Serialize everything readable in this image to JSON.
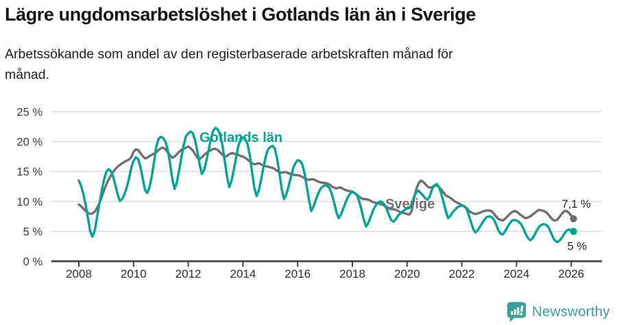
{
  "header": {
    "title": "Lägre ungdomsarbetslöshet i Gotlands län än i Sverige",
    "subtitle": "Arbetssökande som andel av den registerbaserade arbetskraften månad för\nmånad."
  },
  "chart_data": {
    "type": "line",
    "title": "Lägre ungdomsarbetslöshet i Gotlands län än i Sverige",
    "xlabel": "",
    "ylabel": "",
    "unit": "%",
    "ylim": [
      0,
      25
    ],
    "grid": true,
    "y_ticks": [
      0,
      5,
      10,
      15,
      20,
      25
    ],
    "y_tick_labels": [
      "0 %",
      "5 %",
      "10 %",
      "15 %",
      "20 %",
      "25 %"
    ],
    "x_tick_years": [
      2008,
      2010,
      2012,
      2014,
      2016,
      2018,
      2020,
      2022,
      2024,
      2026
    ],
    "x_tick_labels": [
      "2008",
      "2010",
      "2012",
      "2014",
      "2016",
      "2018",
      "2020",
      "2022",
      "2024",
      "2026"
    ],
    "x_monthly_range": "2008-01 to 2026-02",
    "axis_color": "#3f3f3f",
    "grid_color": "#d9d9d9",
    "series": [
      {
        "name": "Sverige",
        "color": "#6f6f6f",
        "end_label": "7,1 %",
        "end_value": 7.1,
        "values": [
          9.5,
          9.2,
          8.8,
          8.4,
          8.1,
          7.9,
          8.0,
          8.3,
          8.9,
          9.7,
          10.7,
          11.8,
          12.8,
          13.6,
          14.3,
          14.9,
          15.4,
          15.8,
          16.1,
          16.4,
          16.6,
          16.8,
          17.0,
          17.4,
          18.3,
          18.7,
          18.6,
          18.1,
          17.6,
          17.2,
          17.3,
          17.6,
          17.8,
          18.0,
          18.2,
          18.6,
          18.9,
          19.0,
          18.7,
          18.2,
          17.7,
          17.3,
          17.5,
          17.9,
          18.3,
          18.6,
          18.8,
          19.0,
          19.2,
          18.9,
          18.5,
          17.9,
          17.3,
          17.1,
          17.4,
          17.8,
          18.1,
          18.4,
          18.6,
          18.8,
          18.8,
          18.6,
          18.2,
          17.8,
          17.5,
          17.6,
          17.9,
          18.1,
          18.0,
          17.9,
          17.8,
          17.6,
          17.5,
          17.3,
          17.0,
          16.7,
          16.4,
          16.2,
          16.3,
          16.4,
          16.2,
          16.0,
          15.9,
          15.8,
          15.7,
          15.6,
          15.4,
          15.1,
          14.9,
          14.8,
          14.9,
          14.9,
          14.7,
          14.6,
          14.5,
          14.4,
          14.4,
          14.3,
          14.1,
          13.9,
          13.7,
          13.6,
          13.7,
          13.7,
          13.5,
          13.3,
          13.2,
          13.1,
          13.1,
          13.0,
          12.8,
          12.5,
          12.3,
          12.2,
          12.3,
          12.3,
          12.1,
          11.9,
          11.8,
          11.7,
          11.6,
          11.4,
          11.1,
          10.8,
          10.5,
          10.4,
          10.4,
          10.3,
          10.1,
          9.9,
          9.8,
          9.7,
          9.6,
          9.5,
          9.3,
          9.0,
          8.8,
          8.7,
          8.7,
          8.6,
          8.4,
          8.2,
          8.1,
          8.0,
          7.9,
          7.8,
          8.4,
          10.5,
          12.0,
          13.0,
          13.5,
          13.3,
          12.9,
          12.5,
          12.3,
          12.4,
          12.6,
          12.7,
          12.4,
          12.0,
          11.5,
          11.0,
          10.8,
          10.6,
          10.3,
          10.0,
          9.8,
          9.6,
          9.4,
          9.2,
          8.9,
          8.5,
          8.2,
          8.0,
          7.9,
          8.0,
          8.1,
          8.3,
          8.4,
          8.5,
          8.5,
          8.4,
          8.0,
          7.5,
          7.1,
          6.9,
          6.8,
          7.1,
          7.5,
          7.9,
          8.2,
          8.4,
          8.3,
          8.0,
          7.7,
          7.4,
          7.2,
          7.3,
          7.5,
          7.8,
          8.1,
          8.4,
          8.6,
          8.5,
          8.4,
          8.2,
          7.8,
          7.3,
          6.9,
          6.8,
          7.0,
          7.5,
          8.0,
          8.4,
          8.4,
          8.1,
          7.6,
          7.1
        ]
      },
      {
        "name": "Gotlands län",
        "color": "#00a296",
        "end_label": "5 %",
        "end_value": 5.0,
        "values": [
          13.5,
          12.6,
          11.2,
          9.4,
          7.2,
          5.0,
          4.1,
          5.2,
          7.4,
          9.6,
          11.6,
          13.6,
          14.9,
          15.4,
          15.1,
          14.2,
          12.8,
          11.2,
          10.1,
          10.4,
          11.2,
          12.3,
          13.8,
          15.6,
          16.8,
          17.4,
          17.1,
          15.8,
          13.9,
          12.0,
          11.4,
          12.4,
          14.2,
          16.6,
          19.2,
          20.5,
          20.8,
          20.6,
          20.0,
          18.6,
          16.4,
          13.8,
          12.1,
          13.2,
          15.2,
          17.4,
          19.4,
          20.9,
          21.4,
          21.7,
          21.4,
          20.2,
          18.4,
          16.2,
          14.6,
          15.3,
          16.9,
          18.7,
          20.5,
          21.9,
          22.3,
          22.0,
          21.2,
          19.4,
          16.8,
          14.2,
          12.4,
          13.5,
          15.3,
          17.3,
          19.3,
          20.5,
          20.7,
          20.4,
          19.6,
          17.7,
          14.9,
          12.3,
          10.9,
          11.9,
          13.7,
          15.7,
          17.5,
          18.7,
          19.1,
          19.3,
          18.8,
          17.1,
          14.7,
          12.1,
          10.4,
          11.2,
          12.5,
          14.0,
          15.5,
          16.4,
          16.9,
          16.8,
          16.2,
          14.7,
          12.5,
          10.2,
          8.4,
          9.2,
          10.3,
          11.3,
          12.1,
          12.5,
          12.7,
          12.6,
          12.2,
          11.2,
          9.8,
          8.2,
          7.2,
          7.8,
          8.8,
          9.8,
          10.7,
          11.3,
          11.6,
          11.4,
          11.0,
          10.0,
          8.6,
          7.0,
          5.8,
          6.4,
          7.4,
          8.4,
          9.2,
          9.7,
          10.0,
          9.9,
          9.5,
          8.8,
          7.8,
          6.9,
          6.6,
          7.0,
          7.6,
          8.0,
          8.3,
          8.6,
          8.8,
          8.9,
          9.5,
          10.8,
          11.5,
          11.8,
          11.4,
          11.0,
          10.5,
          10.3,
          10.9,
          12.1,
          12.7,
          12.9,
          12.4,
          11.3,
          9.9,
          8.4,
          7.2,
          7.6,
          8.2,
          8.6,
          9.0,
          9.2,
          9.3,
          9.2,
          8.8,
          7.8,
          6.6,
          5.4,
          4.8,
          5.2,
          5.8,
          6.4,
          7.0,
          7.4,
          7.5,
          7.4,
          7.0,
          6.2,
          5.2,
          4.6,
          4.5,
          5.0,
          5.7,
          6.3,
          6.8,
          6.9,
          6.8,
          6.6,
          6.2,
          5.5,
          4.6,
          3.9,
          3.5,
          3.8,
          4.5,
          5.2,
          5.8,
          6.1,
          6.2,
          6.1,
          5.7,
          4.9,
          4.0,
          3.4,
          3.2,
          3.5,
          4.0,
          4.6,
          5.1,
          5.3,
          5.2,
          5.0
        ]
      }
    ],
    "legend_position": "inline-labels"
  },
  "footer": {
    "brand": "Newsworthy",
    "brand_color": "#3f9e98",
    "logo_icon": "chart-bars-exclamation-bubble"
  }
}
